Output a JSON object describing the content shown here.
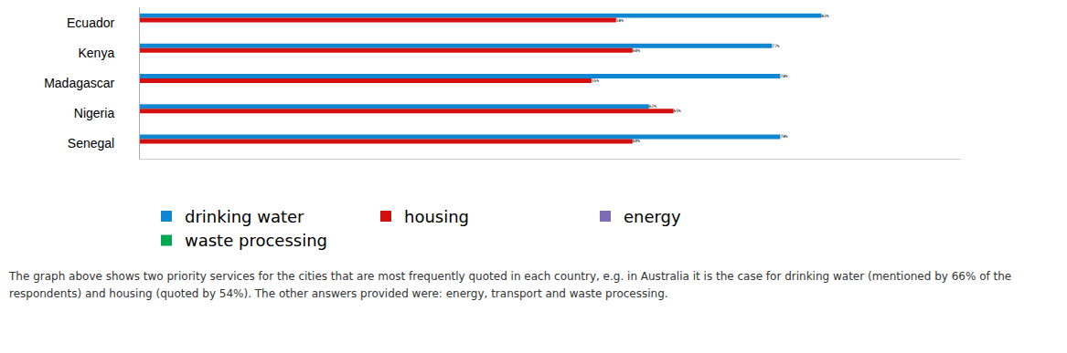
{
  "chart_data": {
    "type": "bar",
    "orientation": "horizontal",
    "categories": [
      "Ecuador",
      "Kenya",
      "Madagascar",
      "Nigeria",
      "Senegal"
    ],
    "series": [
      {
        "name": "drinking water",
        "color": "#0f86d0",
        "values": [
          83,
          77,
          78,
          62,
          78
        ],
        "value_labels": [
          "83%",
          "77%",
          "78%",
          "62%",
          "78%"
        ]
      },
      {
        "name": "housing",
        "color": "#d40f0f",
        "values": [
          58,
          60,
          55,
          65,
          60
        ],
        "value_labels": [
          "58%",
          "60%",
          "55%",
          "65%",
          "60%"
        ]
      },
      {
        "name": "energy",
        "color": "#7e6bb5",
        "values": [
          null,
          null,
          null,
          null,
          null
        ]
      },
      {
        "name": "waste processing",
        "color": "#00a650",
        "values": [
          null,
          null,
          null,
          null,
          null
        ]
      }
    ],
    "xlim": [
      0,
      100
    ],
    "data_labels": true,
    "tick_labels": "y",
    "grid": false,
    "legend": "bottom",
    "annotations": [
      "The graph above shows two priority services for the cities that are most frequently quoted in each country, e.g. in Australia it is the case for drinking water (mentioned by 66% of the respondents) and housing (quoted by 54%). The other answers provided were: energy, transport and waste processing."
    ]
  }
}
